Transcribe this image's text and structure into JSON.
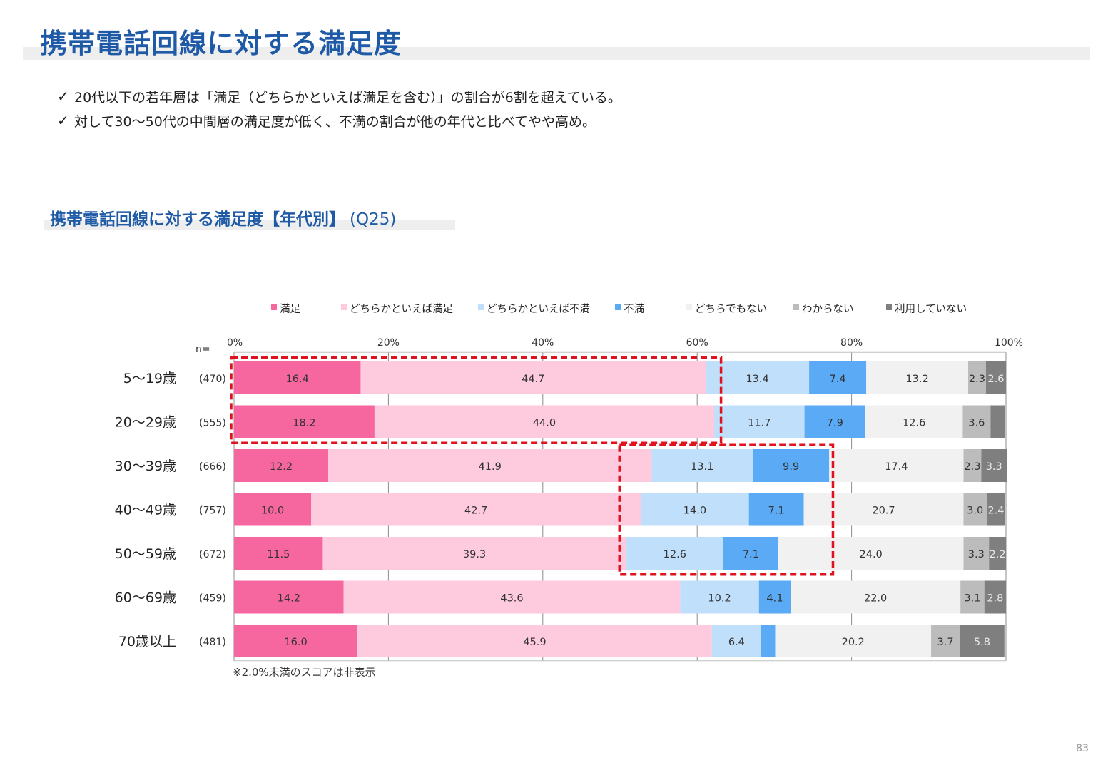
{
  "page": {
    "title": "携帯電話回線に対する満足度",
    "bullets": [
      "20代以下の若年層は「満足（どちらかといえば満足を含む）」の割合が6割を超えている。",
      "対して30～50代の中間層の満足度が低く、不満の割合が他の年代と比べてやや高め。"
    ],
    "check_mark": "✓",
    "subtitle": "携帯電話回線に対する満足度【年代別】",
    "subtitle_q": "(Q25)",
    "page_number": "83"
  },
  "chart_data": {
    "type": "bar",
    "orientation": "horizontal",
    "stacked": true,
    "title": "携帯電話回線に対する満足度【年代別】(Q25)",
    "n_label": "n=",
    "note": "※2.0%未満のスコアは非表示",
    "label_min": 2.0,
    "xlim": [
      0,
      100
    ],
    "x_ticks": [
      "0%",
      "20%",
      "40%",
      "60%",
      "80%",
      "100%"
    ],
    "legend_position": "top",
    "categories": [
      "5～19歳",
      "20～29歳",
      "30～39歳",
      "40～49歳",
      "50～59歳",
      "60～69歳",
      "70歳以上"
    ],
    "n_values": [
      "(470)",
      "(555)",
      "(666)",
      "(757)",
      "(672)",
      "(459)",
      "(481)"
    ],
    "series": [
      {
        "name": "満足",
        "color": "#f7679f",
        "values": [
          16.4,
          18.2,
          12.2,
          10.0,
          11.5,
          14.2,
          16.0
        ]
      },
      {
        "name": "どちらかといえば満足",
        "color": "#fdcade",
        "values": [
          44.7,
          44.0,
          41.9,
          42.7,
          39.3,
          43.6,
          45.9
        ]
      },
      {
        "name": "どちらかといえば不満",
        "color": "#bfdffb",
        "values": [
          13.4,
          11.7,
          13.1,
          14.0,
          12.6,
          10.2,
          6.4
        ]
      },
      {
        "name": "不満",
        "color": "#5aaaf5",
        "values": [
          7.4,
          7.9,
          9.9,
          7.1,
          7.1,
          4.1,
          1.8
        ]
      },
      {
        "name": "どちらでもない",
        "color": "#f1f1f1",
        "values": [
          13.2,
          12.6,
          17.4,
          20.7,
          24.0,
          22.0,
          20.2
        ]
      },
      {
        "name": "わからない",
        "color": "#bcbcbc",
        "values": [
          2.3,
          3.6,
          2.3,
          3.0,
          3.3,
          3.1,
          3.7
        ]
      },
      {
        "name": "利用していない",
        "color": "#7f7f7f",
        "values": [
          2.6,
          1.9,
          3.3,
          2.4,
          2.2,
          2.8,
          5.8
        ]
      }
    ],
    "highlights": [
      {
        "rows": [
          0,
          1
        ],
        "x_range": [
          0,
          62.9
        ],
        "color": "#e0121d"
      },
      {
        "rows": [
          2,
          4
        ],
        "x_range": [
          50.3,
          77.4
        ],
        "color": "#e0121d"
      }
    ]
  }
}
